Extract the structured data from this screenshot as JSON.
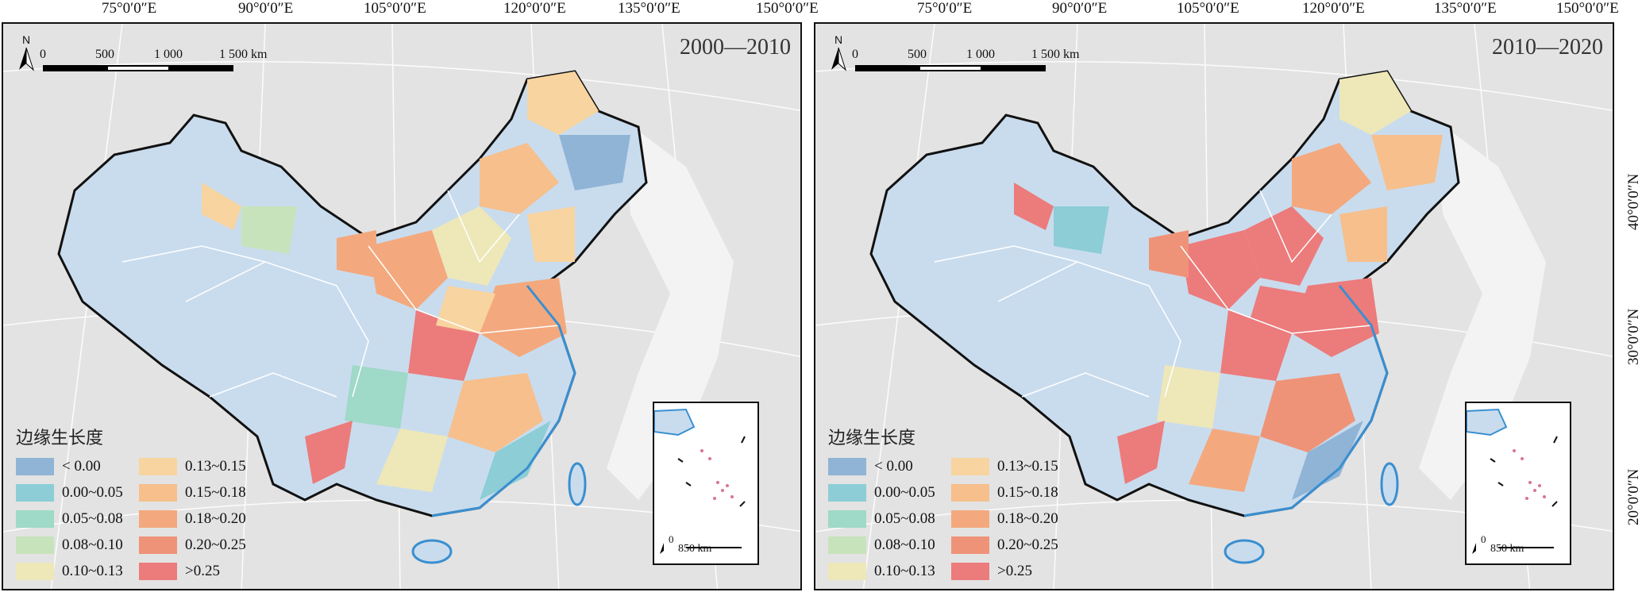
{
  "longitude_labels": [
    "75°0′0″E",
    "90°0′0″E",
    "105°0′0″E",
    "120°0′0″E",
    "135°0′0″E",
    "150°0′0″E"
  ],
  "latitude_labels": [
    "40°0′0″N",
    "30°0′0″N",
    "20°0′0″N"
  ],
  "north_label": "N",
  "scale": {
    "ticks": [
      "0",
      "500",
      "1 000",
      "1 500 km"
    ]
  },
  "inset": {
    "zero": "0",
    "scale_label": "850 km"
  },
  "legend": {
    "title": "边缘生长度",
    "classes": [
      {
        "label": "< 0.00",
        "color": "#8fb4d6"
      },
      {
        "label": "0.00~0.05",
        "color": "#8ccdd6"
      },
      {
        "label": "0.05~0.08",
        "color": "#9fd9c8"
      },
      {
        "label": "0.08~0.10",
        "color": "#c7e3bc"
      },
      {
        "label": "0.10~0.13",
        "color": "#eee7b8"
      },
      {
        "label": "0.13~0.15",
        "color": "#f8d4a0"
      },
      {
        "label": "0.15~0.18",
        "color": "#f6bf8c"
      },
      {
        "label": "0.18~0.20",
        "color": "#f3a97d"
      },
      {
        "label": "0.20~0.25",
        "color": "#ef9378"
      },
      {
        "label": ">0.25",
        "color": "#ec7b7b"
      }
    ]
  },
  "colors": {
    "background": "#e3e3e3",
    "land": "#c9dcee",
    "coast": "#3a8fd0",
    "border": "#111111"
  },
  "maps": [
    {
      "period": "2000—2010"
    },
    {
      "period": "2010—2020"
    }
  ]
}
